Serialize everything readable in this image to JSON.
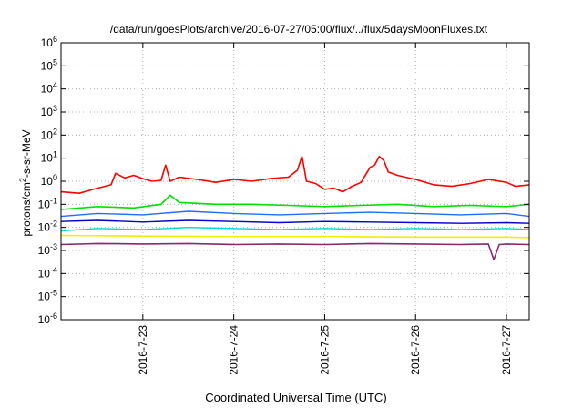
{
  "chart_data": {
    "type": "line",
    "title": "/data/run/goesPlots/archive/2016-07-27/05:00/flux/../flux/5daysMoonFluxes.txt",
    "xlabel": "Coordinated Universal Time (UTC)",
    "ylabel_parts": [
      "protons/cm",
      "2",
      "-s-sr-MeV"
    ],
    "yscale": "log",
    "ylim_exp": [
      -6,
      6
    ],
    "y_ticks": [
      {
        "base": "10",
        "exp": "-6"
      },
      {
        "base": "10",
        "exp": "-5"
      },
      {
        "base": "10",
        "exp": "-4"
      },
      {
        "base": "10",
        "exp": "-3"
      },
      {
        "base": "10",
        "exp": "-2"
      },
      {
        "base": "10",
        "exp": "-1"
      },
      {
        "base": "10",
        "exp": "0"
      },
      {
        "base": "10",
        "exp": "1"
      },
      {
        "base": "10",
        "exp": "2"
      },
      {
        "base": "10",
        "exp": "3"
      },
      {
        "base": "10",
        "exp": "4"
      },
      {
        "base": "10",
        "exp": "5"
      },
      {
        "base": "10",
        "exp": "6"
      }
    ],
    "xlim_days": [
      22.1,
      27.25
    ],
    "x_ticks": [
      {
        "label": "2016-7-23",
        "day": 23
      },
      {
        "label": "2016-7-24",
        "day": 24
      },
      {
        "label": "2016-7-25",
        "day": 25
      },
      {
        "label": "2016-7-26",
        "day": 26
      },
      {
        "label": "2016-7-27",
        "day": 27
      }
    ],
    "grid": true,
    "series": [
      {
        "color": "#ff0000",
        "width": 1.6,
        "x": [
          22.1,
          22.3,
          22.5,
          22.65,
          22.7,
          22.8,
          22.9,
          23.0,
          23.1,
          23.2,
          23.25,
          23.3,
          23.4,
          23.6,
          23.8,
          24.0,
          24.2,
          24.4,
          24.6,
          24.7,
          24.75,
          24.8,
          24.9,
          25.0,
          25.1,
          25.2,
          25.3,
          25.4,
          25.5,
          25.55,
          25.6,
          25.65,
          25.7,
          25.8,
          26.0,
          26.2,
          26.4,
          26.6,
          26.8,
          27.0,
          27.1,
          27.25
        ],
        "values": [
          0.35,
          0.3,
          0.5,
          0.7,
          2.2,
          1.4,
          1.8,
          1.3,
          1.0,
          1.1,
          5.0,
          1.0,
          1.5,
          1.2,
          0.9,
          1.2,
          1.0,
          1.3,
          1.5,
          3.0,
          12.0,
          1.0,
          0.8,
          0.45,
          0.5,
          0.35,
          0.6,
          0.9,
          4.0,
          5.0,
          12.0,
          8.0,
          2.5,
          1.8,
          1.2,
          0.7,
          0.6,
          0.8,
          1.2,
          0.9,
          0.6,
          0.7
        ]
      },
      {
        "color": "#00e000",
        "width": 1.6,
        "x": [
          22.1,
          22.5,
          22.9,
          23.2,
          23.3,
          23.4,
          23.8,
          24.2,
          24.6,
          25.0,
          25.4,
          25.8,
          26.2,
          26.6,
          27.0,
          27.25
        ],
        "values": [
          0.06,
          0.08,
          0.07,
          0.1,
          0.25,
          0.12,
          0.1,
          0.1,
          0.09,
          0.08,
          0.09,
          0.1,
          0.08,
          0.09,
          0.08,
          0.1
        ]
      },
      {
        "color": "#00d8d8",
        "width": 1.4,
        "x": [
          22.1,
          22.5,
          23.0,
          23.5,
          24.0,
          24.5,
          25.0,
          25.5,
          26.0,
          26.5,
          27.0,
          27.25
        ],
        "values": [
          0.007,
          0.009,
          0.008,
          0.01,
          0.009,
          0.008,
          0.009,
          0.008,
          0.009,
          0.008,
          0.009,
          0.008
        ]
      },
      {
        "color": "#1e6fff",
        "width": 1.4,
        "x": [
          22.1,
          22.5,
          23.0,
          23.5,
          24.0,
          24.5,
          25.0,
          25.5,
          26.0,
          26.5,
          27.0,
          27.25
        ],
        "values": [
          0.03,
          0.04,
          0.035,
          0.05,
          0.04,
          0.035,
          0.04,
          0.045,
          0.04,
          0.035,
          0.04,
          0.03
        ]
      },
      {
        "color": "#0000cc",
        "width": 1.4,
        "x": [
          22.1,
          22.5,
          23.0,
          23.5,
          24.0,
          24.5,
          25.0,
          25.5,
          26.0,
          26.5,
          27.0,
          27.25
        ],
        "values": [
          0.018,
          0.02,
          0.017,
          0.02,
          0.018,
          0.016,
          0.018,
          0.017,
          0.016,
          0.015,
          0.016,
          0.015
        ]
      },
      {
        "color": "#f0f000",
        "width": 1.6,
        "x": [
          22.1,
          23.0,
          24.0,
          25.0,
          26.0,
          27.0,
          27.25
        ],
        "values": [
          0.0045,
          0.0042,
          0.004,
          0.004,
          0.0038,
          0.0038,
          0.0036
        ]
      },
      {
        "color": "#8a2a6a",
        "width": 1.6,
        "x": [
          22.1,
          22.5,
          23.0,
          23.5,
          24.0,
          24.5,
          25.0,
          25.5,
          26.0,
          26.5,
          26.8,
          26.86,
          26.92,
          27.0,
          27.25
        ],
        "values": [
          0.0018,
          0.002,
          0.0019,
          0.002,
          0.0018,
          0.0019,
          0.0018,
          0.002,
          0.0019,
          0.0018,
          0.0019,
          0.0004,
          0.0018,
          0.0019,
          0.0018
        ]
      }
    ]
  }
}
